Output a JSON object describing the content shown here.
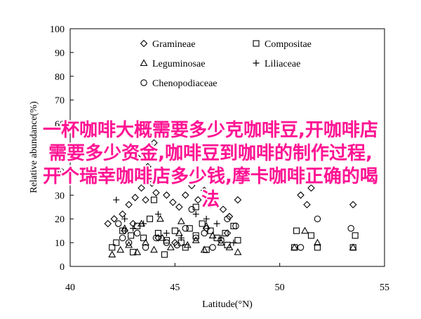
{
  "chart_data": {
    "type": "scatter",
    "title": "",
    "xlabel": "Latitude(°N)",
    "ylabel": "Relative abundance(%)",
    "xlim": [
      40,
      55
    ],
    "ylim": [
      0,
      100
    ],
    "xticks": [
      40,
      45,
      50,
      55
    ],
    "yticks": [
      0,
      10,
      20,
      30,
      40,
      50,
      60,
      70,
      80,
      90,
      100
    ],
    "grid": false,
    "legend_position": "top-left",
    "series": [
      {
        "name": "Gramineae",
        "marker": "diamond",
        "points": [
          [
            41.8,
            18
          ],
          [
            42.1,
            20
          ],
          [
            42.5,
            22
          ],
          [
            42.8,
            26
          ],
          [
            43.1,
            29
          ],
          [
            43.4,
            33
          ],
          [
            43.6,
            28
          ],
          [
            43.9,
            35
          ],
          [
            44.1,
            31
          ],
          [
            44.4,
            38
          ],
          [
            44.6,
            30
          ],
          [
            44.9,
            27
          ],
          [
            45.2,
            25
          ],
          [
            45.5,
            30
          ],
          [
            45.8,
            34
          ],
          [
            46.1,
            28
          ],
          [
            46.4,
            32
          ],
          [
            46.7,
            26
          ],
          [
            47.0,
            29
          ],
          [
            47.3,
            24
          ],
          [
            47.6,
            21
          ],
          [
            48.0,
            28
          ],
          [
            43.2,
            46
          ],
          [
            43.7,
            42
          ],
          [
            44.0,
            52
          ],
          [
            44.3,
            60
          ],
          [
            42.6,
            15
          ],
          [
            43.0,
            18
          ],
          [
            44.2,
            12
          ],
          [
            45.0,
            10
          ],
          [
            46.5,
            16
          ],
          [
            47.5,
            14
          ],
          [
            51.0,
            30
          ],
          [
            51.3,
            26
          ],
          [
            51.5,
            33
          ],
          [
            53.5,
            26
          ]
        ]
      },
      {
        "name": "Compositae",
        "marker": "square",
        "points": [
          [
            42.2,
            10
          ],
          [
            42.5,
            15
          ],
          [
            42.9,
            13
          ],
          [
            43.2,
            17
          ],
          [
            43.5,
            12
          ],
          [
            43.8,
            20
          ],
          [
            44.2,
            14
          ],
          [
            44.6,
            11
          ],
          [
            45.0,
            15
          ],
          [
            45.3,
            10
          ],
          [
            45.7,
            16
          ],
          [
            46.0,
            13
          ],
          [
            46.3,
            18
          ],
          [
            46.7,
            15
          ],
          [
            47.0,
            12
          ],
          [
            47.4,
            14
          ],
          [
            47.8,
            17
          ],
          [
            48.0,
            11
          ],
          [
            44.0,
            28
          ],
          [
            46.0,
            25
          ],
          [
            42.0,
            8
          ],
          [
            43.0,
            6
          ],
          [
            44.5,
            5
          ],
          [
            45.5,
            8
          ],
          [
            46.5,
            7
          ],
          [
            47.5,
            9
          ],
          [
            50.8,
            15
          ],
          [
            51.5,
            13
          ],
          [
            53.6,
            13
          ],
          [
            50.7,
            8
          ],
          [
            51.8,
            8
          ],
          [
            53.5,
            8
          ]
        ]
      },
      {
        "name": "Leguminosae",
        "marker": "triangle",
        "points": [
          [
            42.0,
            5
          ],
          [
            42.4,
            7
          ],
          [
            42.8,
            9
          ],
          [
            43.2,
            6
          ],
          [
            43.6,
            10
          ],
          [
            44.0,
            7
          ],
          [
            44.4,
            12
          ],
          [
            44.8,
            8
          ],
          [
            45.2,
            14
          ],
          [
            45.6,
            9
          ],
          [
            46.0,
            11
          ],
          [
            46.4,
            7
          ],
          [
            46.8,
            13
          ],
          [
            47.2,
            10
          ],
          [
            47.6,
            8
          ],
          [
            48.0,
            6
          ],
          [
            42.6,
            16
          ],
          [
            43.4,
            18
          ],
          [
            44.3,
            20
          ],
          [
            45.3,
            19
          ],
          [
            46.5,
            17
          ],
          [
            50.7,
            8
          ],
          [
            51.2,
            15
          ],
          [
            51.8,
            10
          ],
          [
            53.5,
            8
          ]
        ]
      },
      {
        "name": "Liliaceae",
        "marker": "plus",
        "points": [
          [
            42.2,
            28
          ],
          [
            42.6,
            20
          ],
          [
            43.0,
            16
          ],
          [
            43.5,
            18
          ],
          [
            44.2,
            22
          ],
          [
            44.6,
            14
          ],
          [
            45.3,
            12
          ],
          [
            46.0,
            22
          ],
          [
            46.5,
            20
          ],
          [
            47.0,
            18
          ],
          [
            47.2,
            12
          ],
          [
            47.8,
            10
          ]
        ]
      },
      {
        "name": "Chenopodiaceae",
        "marker": "circle",
        "points": [
          [
            42.3,
            18
          ],
          [
            42.8,
            10
          ],
          [
            43.2,
            14
          ],
          [
            43.6,
            8
          ],
          [
            44.1,
            12
          ],
          [
            44.6,
            10
          ],
          [
            45.1,
            9
          ],
          [
            45.5,
            16
          ],
          [
            46.0,
            12
          ],
          [
            46.4,
            14
          ],
          [
            46.8,
            8
          ],
          [
            47.2,
            11
          ],
          [
            47.9,
            17
          ],
          [
            42.5,
            12
          ],
          [
            45.8,
            24
          ],
          [
            47.5,
            20
          ],
          [
            51.0,
            8
          ],
          [
            51.8,
            20
          ],
          [
            53.4,
            16
          ]
        ]
      }
    ]
  },
  "overlay": {
    "lines": [
      "一杯咖啡大概需要多少克咖啡豆,开咖啡店",
      "需要多少资金,咖啡豆到咖啡的制作过程,",
      "开个瑞幸咖啡店多少钱,摩卡咖啡正确的喝",
      "法"
    ]
  }
}
